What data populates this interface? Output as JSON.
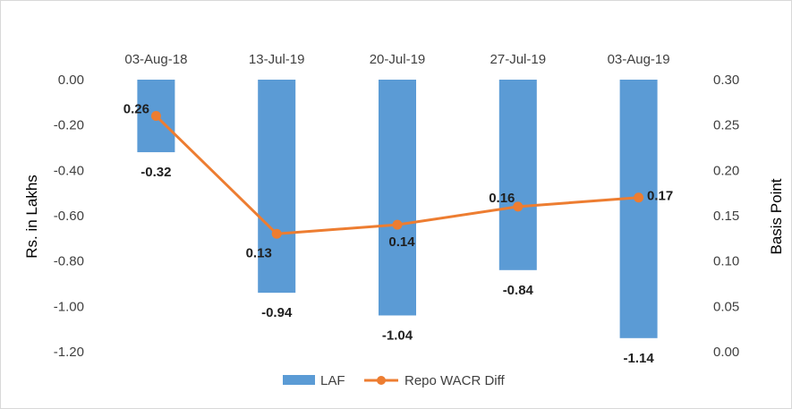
{
  "chart_data": {
    "type": "bar",
    "categories": [
      "03-Aug-18",
      "13-Jul-19",
      "20-Jul-19",
      "27-Jul-19",
      "03-Aug-19"
    ],
    "series": [
      {
        "name": "LAF",
        "type": "bar",
        "axis": "left",
        "color": "#5b9bd5",
        "values": [
          -0.32,
          -0.94,
          -1.04,
          -0.84,
          -1.14
        ],
        "labels": [
          "-0.32",
          "-0.94",
          "-1.04",
          "-0.84",
          "-1.14"
        ]
      },
      {
        "name": "Repo WACR Diff",
        "type": "line",
        "axis": "right",
        "color": "#ed7d31",
        "marker": "circle",
        "values": [
          0.26,
          0.13,
          0.14,
          0.16,
          0.17
        ],
        "labels": [
          "0.26",
          "0.13",
          "0.14",
          "0.16",
          "0.17"
        ]
      }
    ],
    "ylabel_left": "Rs. in Lakhs",
    "ylabel_right": "Basis Point",
    "ylim_left": [
      -1.2,
      0
    ],
    "ylim_right": [
      0,
      0.3
    ],
    "yticks_left": [
      "0.00",
      "-0.20",
      "-0.40",
      "-0.60",
      "-0.80",
      "-1.00",
      "-1.20"
    ],
    "yticks_right": [
      "0.30",
      "0.25",
      "0.20",
      "0.15",
      "0.10",
      "0.05",
      "0.00"
    ],
    "category_axis_position": "top",
    "grid": false,
    "legend_position": "bottom"
  }
}
